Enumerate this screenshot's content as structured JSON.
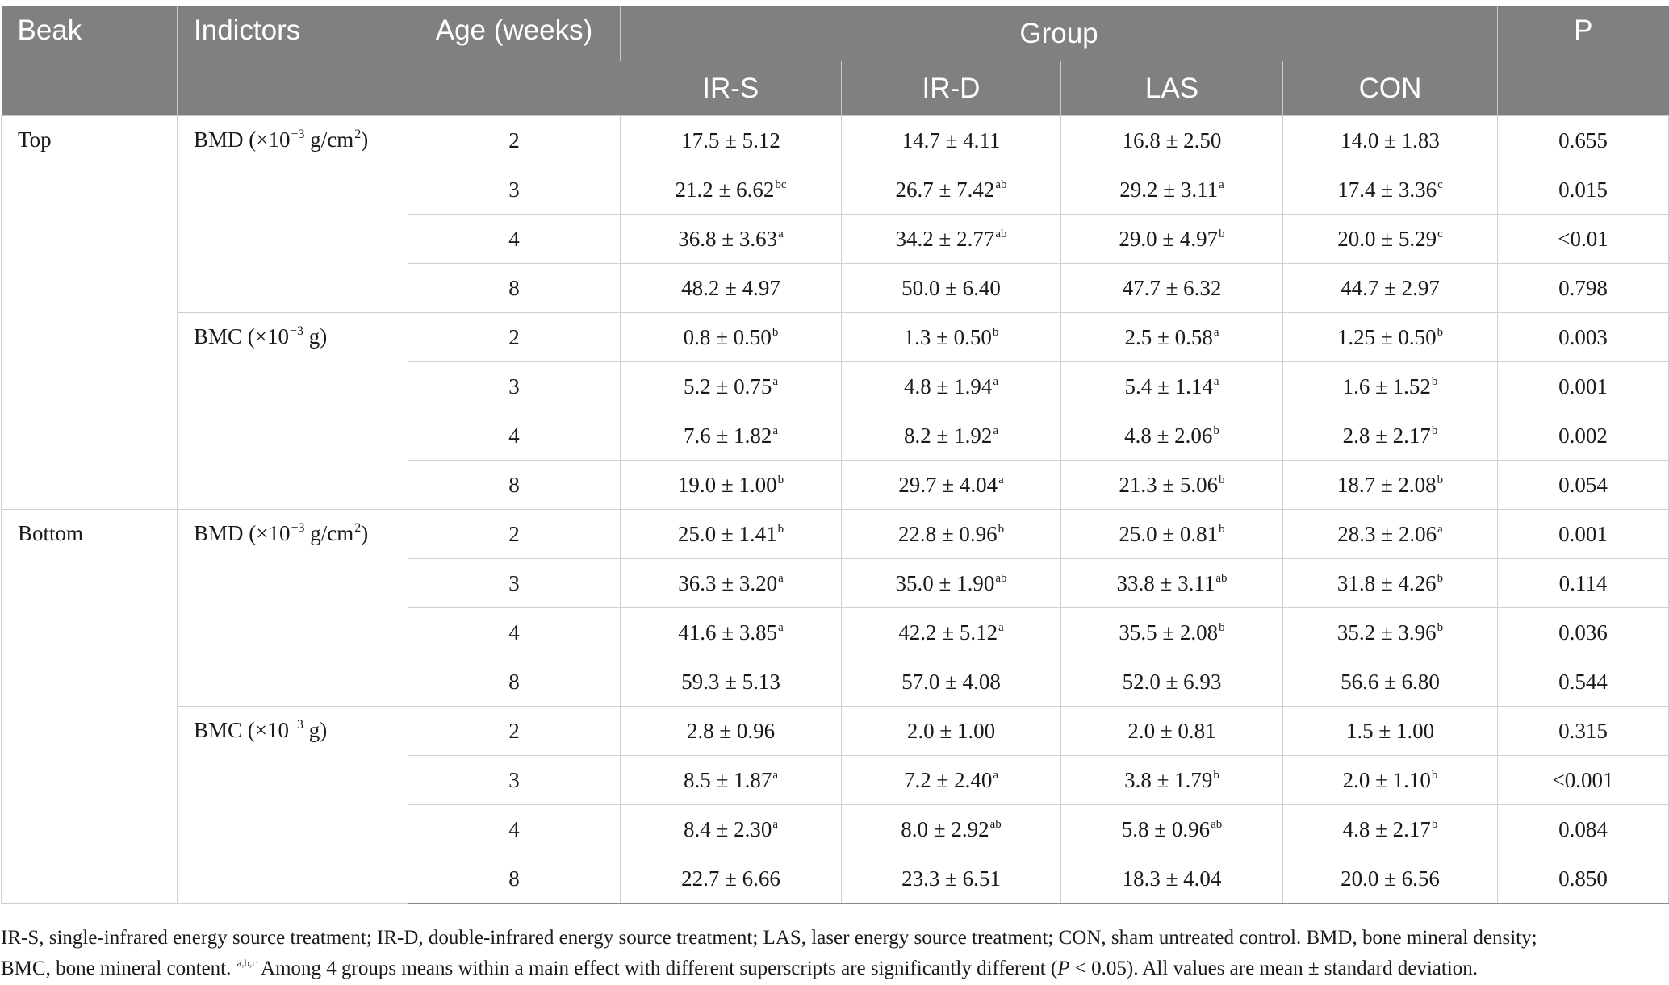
{
  "table": {
    "headers": {
      "beak": "Beak",
      "indicators": "Indictors",
      "age": "Age (weeks)",
      "group": "Group",
      "p": "P",
      "groups": [
        "IR-S",
        "IR-D",
        "LAS",
        "CON"
      ]
    },
    "sections": [
      {
        "beak": "Top",
        "indicators": [
          {
            "name": "BMD (×10",
            "exp": "−3",
            "unit": " g/cm",
            "unit_sup": "2",
            "unit_tail": ")",
            "rows": [
              {
                "age": "2",
                "cells": [
                  [
                    "17.5 ± 5.12",
                    ""
                  ],
                  [
                    "14.7 ± 4.11",
                    ""
                  ],
                  [
                    "16.8 ± 2.50",
                    ""
                  ],
                  [
                    "14.0 ± 1.83",
                    ""
                  ]
                ],
                "p": "0.655"
              },
              {
                "age": "3",
                "cells": [
                  [
                    "21.2 ± 6.62",
                    "bc"
                  ],
                  [
                    "26.7 ± 7.42",
                    "ab"
                  ],
                  [
                    "29.2 ± 3.11",
                    "a"
                  ],
                  [
                    "17.4 ± 3.36",
                    "c"
                  ]
                ],
                "p": "0.015"
              },
              {
                "age": "4",
                "cells": [
                  [
                    "36.8 ± 3.63",
                    "a"
                  ],
                  [
                    "34.2 ± 2.77",
                    "ab"
                  ],
                  [
                    "29.0 ± 4.97",
                    "b"
                  ],
                  [
                    "20.0 ± 5.29",
                    "c"
                  ]
                ],
                "p": "<0.01"
              },
              {
                "age": "8",
                "cells": [
                  [
                    "48.2 ± 4.97",
                    ""
                  ],
                  [
                    "50.0 ± 6.40",
                    ""
                  ],
                  [
                    "47.7 ± 6.32",
                    ""
                  ],
                  [
                    "44.7 ± 2.97",
                    ""
                  ]
                ],
                "p": "0.798"
              }
            ]
          },
          {
            "name": "BMC (×10",
            "exp": "−3",
            "unit": " g)",
            "unit_sup": "",
            "unit_tail": "",
            "rows": [
              {
                "age": "2",
                "cells": [
                  [
                    "0.8 ± 0.50",
                    "b"
                  ],
                  [
                    "1.3 ± 0.50",
                    "b"
                  ],
                  [
                    "2.5 ± 0.58",
                    "a"
                  ],
                  [
                    "1.25 ± 0.50",
                    "b"
                  ]
                ],
                "p": "0.003"
              },
              {
                "age": "3",
                "cells": [
                  [
                    "5.2 ± 0.75",
                    "a"
                  ],
                  [
                    "4.8 ± 1.94",
                    "a"
                  ],
                  [
                    "5.4 ± 1.14",
                    "a"
                  ],
                  [
                    "1.6 ± 1.52",
                    "b"
                  ]
                ],
                "p": "0.001"
              },
              {
                "age": "4",
                "cells": [
                  [
                    "7.6 ± 1.82",
                    "a"
                  ],
                  [
                    "8.2 ± 1.92",
                    "a"
                  ],
                  [
                    "4.8 ± 2.06",
                    "b"
                  ],
                  [
                    "2.8 ± 2.17",
                    "b"
                  ]
                ],
                "p": "0.002"
              },
              {
                "age": "8",
                "cells": [
                  [
                    "19.0 ± 1.00",
                    "b"
                  ],
                  [
                    "29.7 ± 4.04",
                    "a"
                  ],
                  [
                    "21.3 ± 5.06",
                    "b"
                  ],
                  [
                    "18.7 ± 2.08",
                    "b"
                  ]
                ],
                "p": "0.054"
              }
            ]
          }
        ]
      },
      {
        "beak": "Bottom",
        "indicators": [
          {
            "name": "BMD (×10",
            "exp": "−3",
            "unit": " g/cm",
            "unit_sup": "2",
            "unit_tail": ")",
            "rows": [
              {
                "age": "2",
                "cells": [
                  [
                    "25.0 ± 1.41",
                    "b"
                  ],
                  [
                    "22.8 ± 0.96",
                    "b"
                  ],
                  [
                    "25.0 ± 0.81",
                    "b"
                  ],
                  [
                    "28.3 ± 2.06",
                    "a"
                  ]
                ],
                "p": "0.001"
              },
              {
                "age": "3",
                "cells": [
                  [
                    "36.3 ± 3.20",
                    "a"
                  ],
                  [
                    "35.0 ± 1.90",
                    "ab"
                  ],
                  [
                    "33.8 ± 3.11",
                    "ab"
                  ],
                  [
                    "31.8 ± 4.26",
                    "b"
                  ]
                ],
                "p": "0.114"
              },
              {
                "age": "4",
                "cells": [
                  [
                    "41.6 ± 3.85",
                    "a"
                  ],
                  [
                    "42.2 ± 5.12",
                    "a"
                  ],
                  [
                    "35.5 ± 2.08",
                    "b"
                  ],
                  [
                    "35.2 ± 3.96",
                    "b"
                  ]
                ],
                "p": "0.036"
              },
              {
                "age": "8",
                "cells": [
                  [
                    "59.3 ± 5.13",
                    ""
                  ],
                  [
                    "57.0 ± 4.08",
                    ""
                  ],
                  [
                    "52.0 ± 6.93",
                    ""
                  ],
                  [
                    "56.6 ± 6.80",
                    ""
                  ]
                ],
                "p": "0.544"
              }
            ]
          },
          {
            "name": "BMC (×10",
            "exp": "−3",
            "unit": " g)",
            "unit_sup": "",
            "unit_tail": "",
            "rows": [
              {
                "age": "2",
                "cells": [
                  [
                    "2.8 ± 0.96",
                    ""
                  ],
                  [
                    "2.0 ± 1.00",
                    ""
                  ],
                  [
                    "2.0 ± 0.81",
                    ""
                  ],
                  [
                    "1.5 ± 1.00",
                    ""
                  ]
                ],
                "p": "0.315"
              },
              {
                "age": "3",
                "cells": [
                  [
                    "8.5 ± 1.87",
                    "a"
                  ],
                  [
                    "7.2 ± 2.40",
                    "a"
                  ],
                  [
                    "3.8 ± 1.79",
                    "b"
                  ],
                  [
                    "2.0 ± 1.10",
                    "b"
                  ]
                ],
                "p": "<0.001"
              },
              {
                "age": "4",
                "cells": [
                  [
                    "8.4 ± 2.30",
                    "a"
                  ],
                  [
                    "8.0 ± 2.92",
                    "ab"
                  ],
                  [
                    "5.8 ± 0.96",
                    "ab"
                  ],
                  [
                    "4.8 ± 2.17",
                    "b"
                  ]
                ],
                "p": "0.084"
              },
              {
                "age": "8",
                "cells": [
                  [
                    "22.7 ± 6.66",
                    ""
                  ],
                  [
                    "23.3 ± 6.51",
                    ""
                  ],
                  [
                    "18.3 ± 4.04",
                    ""
                  ],
                  [
                    "20.0 ± 6.56",
                    ""
                  ]
                ],
                "p": "0.850"
              }
            ]
          }
        ]
      }
    ]
  },
  "footnote": {
    "line1": "IR-S, single-infrared energy source treatment; IR-D, double-infrared energy source treatment; LAS, laser energy source treatment; CON, sham untreated control. BMD, bone mineral density;",
    "line2_a": "BMC, bone mineral content. ",
    "line2_sup": "a,b,c",
    "line2_b": " Among 4 groups means within a main effect with different superscripts are significantly different (",
    "line2_p": "P",
    "line2_c": " < 0.05). All values are mean ± standard deviation."
  }
}
